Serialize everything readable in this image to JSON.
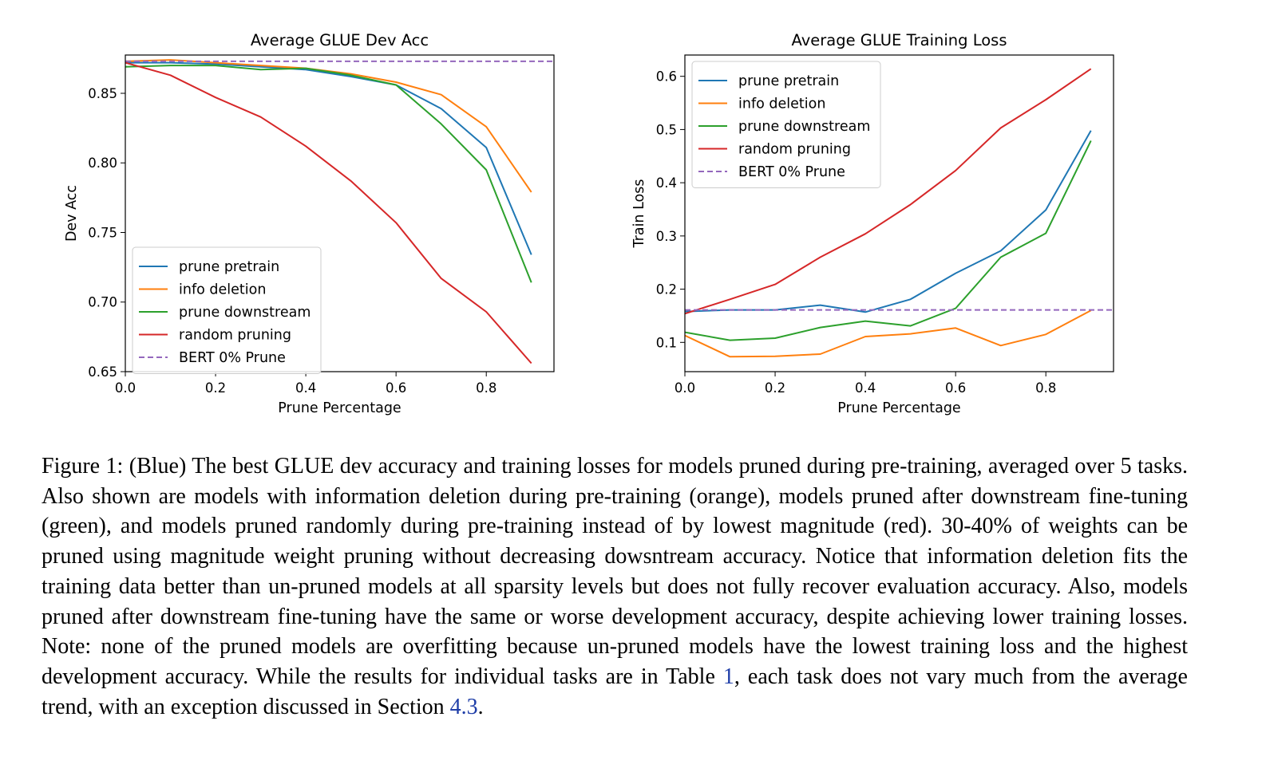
{
  "chart_data": [
    {
      "type": "line",
      "title": "Average GLUE Dev Acc",
      "xlabel": "Prune Percentage",
      "ylabel": "Dev Acc",
      "xlim": [
        0.0,
        0.95
      ],
      "ylim": [
        0.65,
        0.8775
      ],
      "xticks": [
        0.0,
        0.2,
        0.4,
        0.6,
        0.8
      ],
      "xtick_labels": [
        "0.0",
        "0.2",
        "0.4",
        "0.6",
        "0.8"
      ],
      "yticks": [
        0.65,
        0.7,
        0.75,
        0.8,
        0.85
      ],
      "ytick_labels": [
        "0.65",
        "0.70",
        "0.75",
        "0.80",
        "0.85"
      ],
      "grid": false,
      "legend_position": "lower-left",
      "x": [
        0.0,
        0.1,
        0.2,
        0.3,
        0.4,
        0.5,
        0.6,
        0.7,
        0.8,
        0.9
      ],
      "series": [
        {
          "name": "prune pretrain",
          "color": "#1f77b4",
          "style": "solid",
          "values": [
            0.872,
            0.872,
            0.871,
            0.869,
            0.867,
            0.862,
            0.856,
            0.839,
            0.811,
            0.734
          ]
        },
        {
          "name": "info deletion",
          "color": "#ff7f0e",
          "style": "solid",
          "values": [
            0.873,
            0.874,
            0.872,
            0.87,
            0.868,
            0.864,
            0.858,
            0.849,
            0.826,
            0.779
          ]
        },
        {
          "name": "prune downstream",
          "color": "#2ca02c",
          "style": "solid",
          "values": [
            0.869,
            0.87,
            0.87,
            0.867,
            0.868,
            0.863,
            0.856,
            0.828,
            0.795,
            0.714
          ]
        },
        {
          "name": "random pruning",
          "color": "#d62728",
          "style": "solid",
          "values": [
            0.872,
            0.863,
            0.847,
            0.833,
            0.812,
            0.787,
            0.757,
            0.717,
            0.693,
            0.656
          ]
        },
        {
          "name": "BERT 0% Prune",
          "color": "#9467bd",
          "style": "dashed",
          "values": [
            0.873,
            0.873,
            0.873,
            0.873,
            0.873,
            0.873,
            0.873,
            0.873,
            0.873,
            0.873
          ]
        }
      ]
    },
    {
      "type": "line",
      "title": "Average GLUE Training Loss",
      "xlabel": "Prune Percentage",
      "ylabel": "Train Loss",
      "xlim": [
        0.0,
        0.95
      ],
      "ylim": [
        0.045,
        0.64
      ],
      "xticks": [
        0.0,
        0.2,
        0.4,
        0.6,
        0.8
      ],
      "xtick_labels": [
        "0.0",
        "0.2",
        "0.4",
        "0.6",
        "0.8"
      ],
      "yticks": [
        0.1,
        0.2,
        0.3,
        0.4,
        0.5,
        0.6
      ],
      "ytick_labels": [
        "0.1",
        "0.2",
        "0.3",
        "0.4",
        "0.5",
        "0.6"
      ],
      "grid": false,
      "legend_position": "upper-left",
      "x": [
        0.0,
        0.1,
        0.2,
        0.3,
        0.4,
        0.5,
        0.6,
        0.7,
        0.8,
        0.9
      ],
      "series": [
        {
          "name": "prune pretrain",
          "color": "#1f77b4",
          "style": "solid",
          "values": [
            0.158,
            0.161,
            0.161,
            0.17,
            0.157,
            0.181,
            0.23,
            0.272,
            0.349,
            0.498
          ]
        },
        {
          "name": "info deletion",
          "color": "#ff7f0e",
          "style": "solid",
          "values": [
            0.113,
            0.073,
            0.074,
            0.078,
            0.111,
            0.116,
            0.127,
            0.094,
            0.115,
            0.16
          ]
        },
        {
          "name": "prune downstream",
          "color": "#2ca02c",
          "style": "solid",
          "values": [
            0.119,
            0.104,
            0.108,
            0.128,
            0.14,
            0.131,
            0.164,
            0.26,
            0.305,
            0.479
          ]
        },
        {
          "name": "random pruning",
          "color": "#d62728",
          "style": "solid",
          "values": [
            0.154,
            0.181,
            0.209,
            0.26,
            0.304,
            0.359,
            0.423,
            0.503,
            0.556,
            0.614
          ]
        },
        {
          "name": "BERT 0% Prune",
          "color": "#9467bd",
          "style": "dashed",
          "values": [
            0.161,
            0.161,
            0.161,
            0.161,
            0.161,
            0.161,
            0.161,
            0.161,
            0.161,
            0.161
          ]
        }
      ]
    }
  ],
  "caption": {
    "part1": "Figure 1: (Blue) The best GLUE dev accuracy and training losses for models pruned during pre-training, averaged over 5 tasks. Also shown are models with information deletion during pre-training (orange), models pruned after downstream fine-tuning (green), and models pruned randomly during pre-training instead of by lowest magnitude (red). 30-40% of weights can be pruned using magnitude weight pruning without decreasing dowsntream accuracy. Notice that information deletion fits the training data better than un-pruned models at all sparsity levels but does not fully recover evaluation accuracy. Also, models pruned after downstream fine-tuning have the same or worse development accuracy, despite achieving lower training losses. Note: none of the pruned models are overfitting because un-pruned models have the lowest training loss and the highest development accuracy. While the results for individual tasks are in Table ",
    "table_ref": "1",
    "part2": ", each task does not vary much from the average trend, with an exception discussed in Section ",
    "section_ref": "4.3",
    "part3": "."
  }
}
